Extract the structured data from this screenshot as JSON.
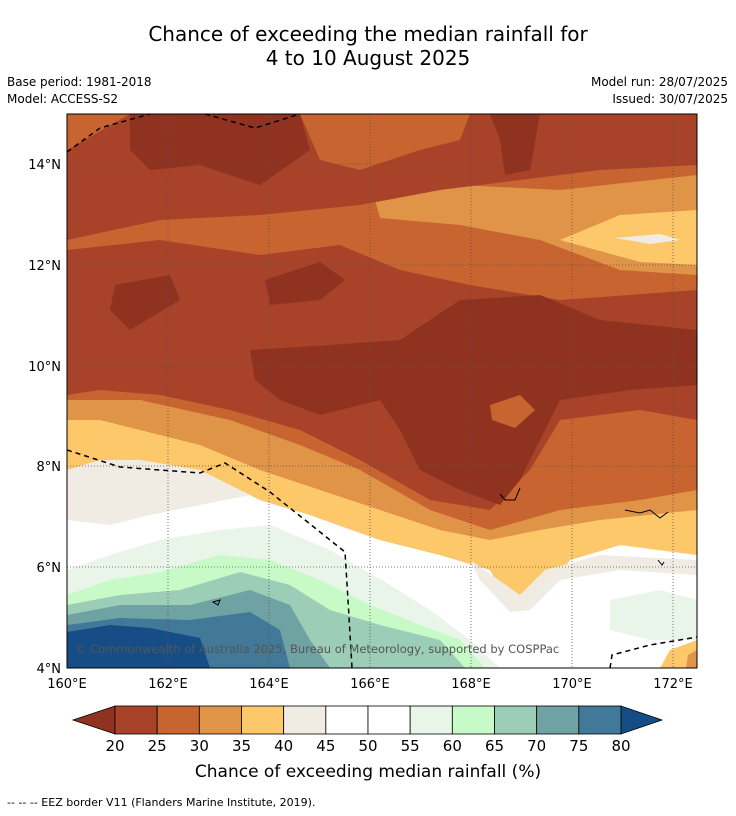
{
  "header": {
    "title_line1": "Chance of exceeding the median rainfall for",
    "title_line2": "4 to 10 August 2025",
    "base_period": "Base period: 1981-2018",
    "model": "Model: ACCESS-S2",
    "model_run": "Model run: 28/07/2025",
    "issued": "Issued: 30/07/2025"
  },
  "map": {
    "x_ticks": [
      "160°E",
      "162°E",
      "164°E",
      "166°E",
      "168°E",
      "170°E",
      "172°E"
    ],
    "y_ticks": [
      "14°N",
      "12°N",
      "10°N",
      "8°N",
      "6°N",
      "4°N"
    ],
    "copyright": "© Commonwealth of Australia 2025, Bureau of Meteorology, supported by COSPPac"
  },
  "colorbar": {
    "ticks": [
      "20",
      "25",
      "30",
      "35",
      "40",
      "45",
      "50",
      "55",
      "60",
      "65",
      "70",
      "75",
      "80"
    ],
    "colors": [
      "#a8432a",
      "#c8642f",
      "#e09448",
      "#fdc86a",
      "#f0ece4",
      "#ffffff",
      "#ffffff",
      "#e8f5e8",
      "#c8fac8",
      "#9ccdb6",
      "#6fa3a3",
      "#427898"
    ],
    "under_color": "#8f321f",
    "over_color": "#164d86",
    "title": "Chance of exceeding median rainfall (%)"
  },
  "footnote": "--  --  -- EEZ border V11 (Flanders Marine Institute, 2019)."
}
